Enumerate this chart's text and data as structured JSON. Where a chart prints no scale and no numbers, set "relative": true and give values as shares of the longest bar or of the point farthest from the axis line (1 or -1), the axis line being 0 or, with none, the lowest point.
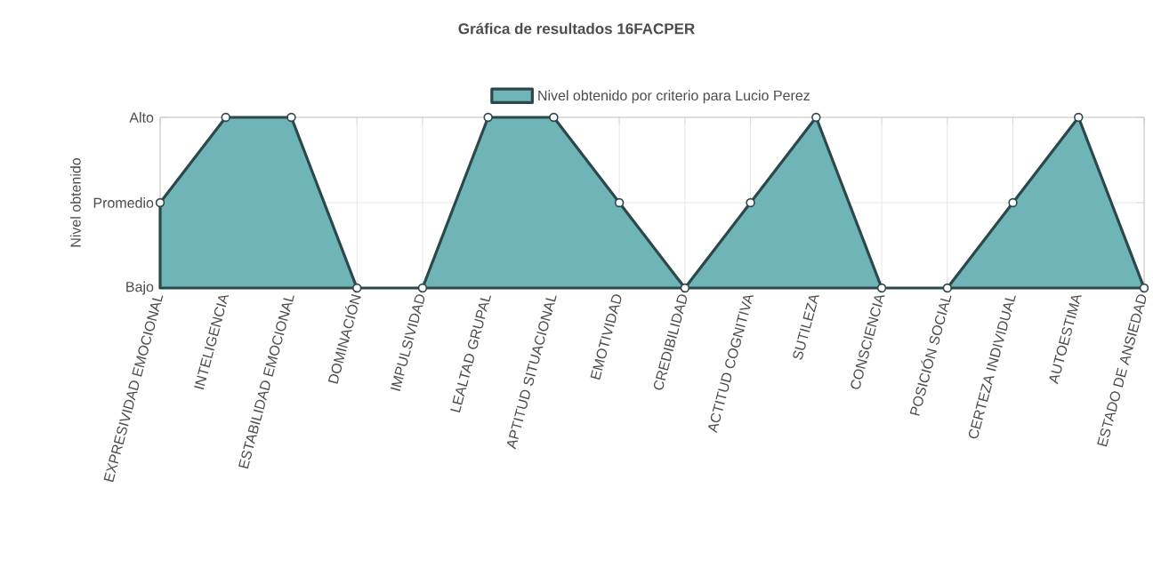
{
  "chart_data": {
    "type": "area",
    "title": "Gráfica de resultados 16FACPER",
    "ylabel": "Nivel obtenido",
    "categories": [
      "EXPRESIVIDAD EMOCIONAL",
      "INTELIGENCIA",
      "ESTABILIDAD EMOCIONAL",
      "DOMINACIÓN",
      "IMPULSIVIDAD",
      "LEALTAD GRUPAL",
      "APTITUD SITUACIONAL",
      "EMOTIVIDAD",
      "CREDIBILIDAD",
      "ACTITUD COGNITIVA",
      "SUTILEZA",
      "CONSCIENCIA",
      "POSICIÓN SOCIAL",
      "CERTEZA INDIVIDUAL",
      "AUTOESTIMA",
      "ESTADO DE ANSIEDAD"
    ],
    "series": [
      {
        "name": "Nivel obtenido por criterio para Lucio Perez",
        "color": "#6fb5b8",
        "values": [
          0.5,
          1,
          1,
          0,
          0,
          1,
          1,
          0.5,
          0,
          0.5,
          1,
          0,
          0,
          0.5,
          1,
          0
        ]
      }
    ],
    "relative": true,
    "annotations": [
      "Bajo",
      "Promedio",
      "Alto"
    ],
    "grid": true,
    "legend": "top",
    "marker": "circle"
  }
}
